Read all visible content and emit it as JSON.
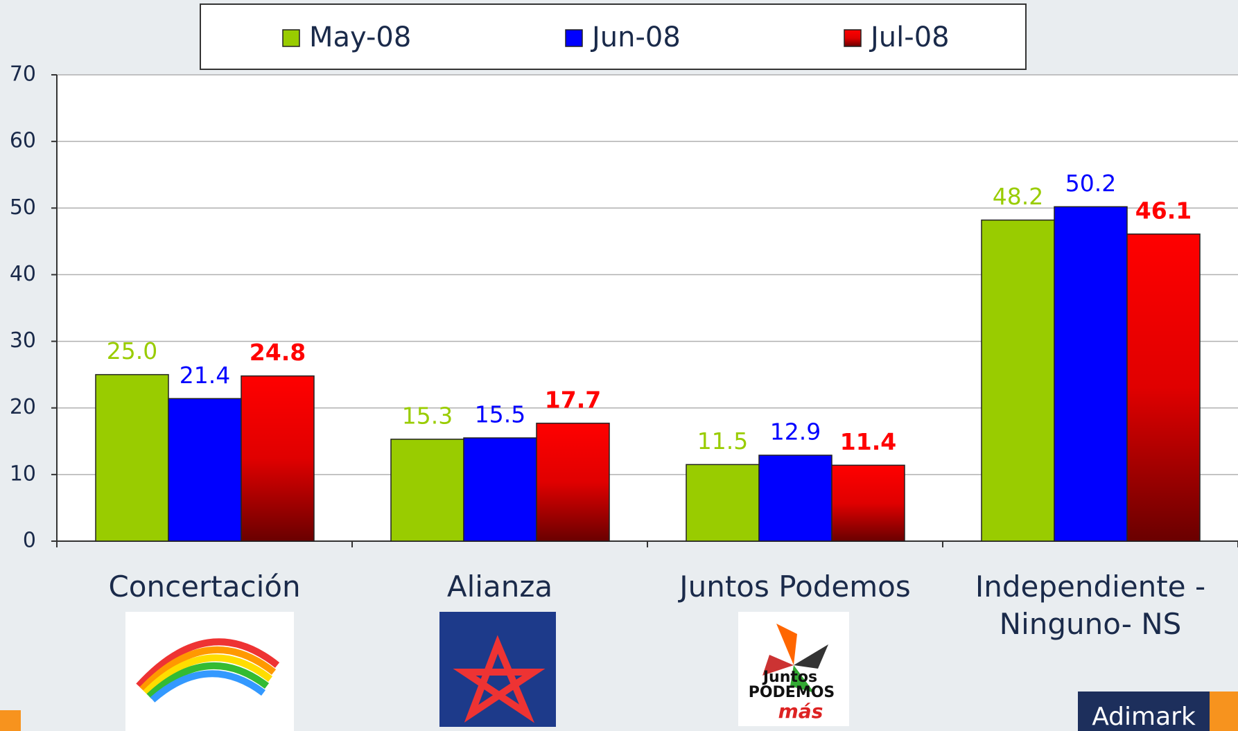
{
  "chart_data": {
    "type": "bar",
    "categories": [
      "Concertación",
      "Alianza",
      "Juntos Podemos",
      "Independiente - Ninguno- NS"
    ],
    "series": [
      {
        "name": "May-08",
        "color": "#99cc00",
        "values": [
          25,
          15.3,
          11.5,
          48.2
        ],
        "value_labels": [
          "25.0",
          "15.3",
          "11.5",
          "48.2"
        ]
      },
      {
        "name": "Jun-08",
        "color": "#0000ff",
        "values": [
          21.4,
          15.5,
          12.9,
          50.2
        ],
        "value_labels": [
          "21.4",
          "15.5",
          "12.9",
          "50.2"
        ]
      },
      {
        "name": "Jul-08",
        "color": "#ff0000",
        "values": [
          24.8,
          17.7,
          11.4,
          46.1
        ],
        "value_labels": [
          "24.8",
          "17.7",
          "11.4",
          "46.1"
        ]
      }
    ],
    "ylim": [
      0,
      70
    ],
    "yticks": [
      0,
      10,
      20,
      30,
      40,
      50,
      60,
      70
    ],
    "grid": true,
    "legend": "top"
  },
  "logo_text": [
    "Juntos",
    "PODEMOS",
    "más"
  ],
  "brand": "Adimark"
}
